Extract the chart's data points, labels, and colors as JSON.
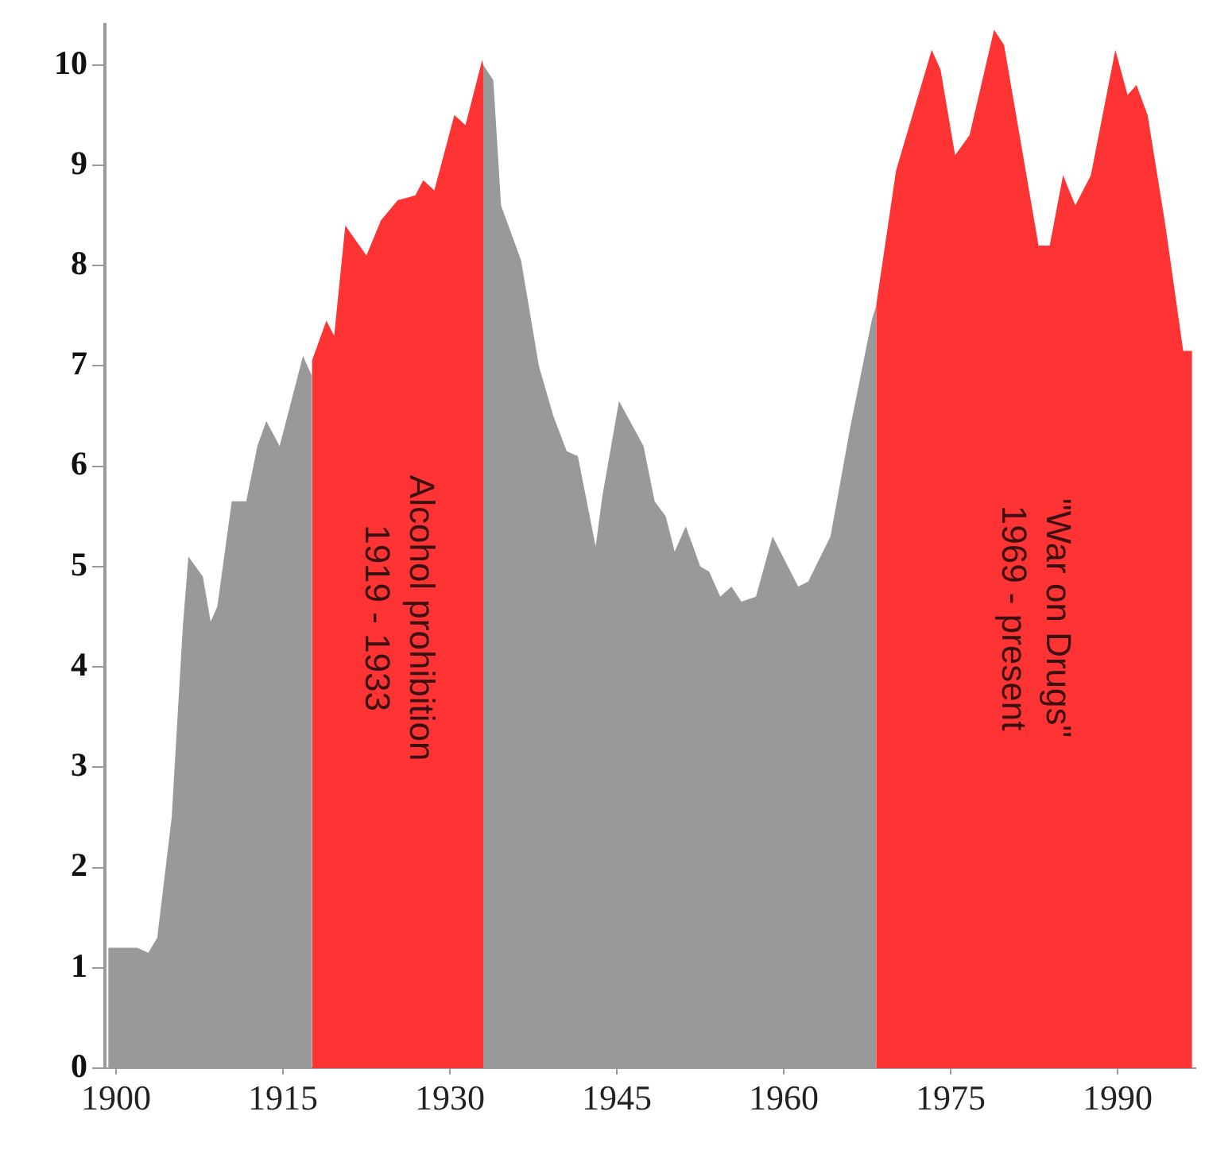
{
  "chart_data": {
    "type": "area",
    "xlim": [
      1899,
      1997
    ],
    "xticks": [
      1900,
      1915,
      1930,
      1945,
      1960,
      1975,
      1990
    ],
    "ylim": [
      0,
      10.4
    ],
    "yticks": [
      0,
      1,
      2,
      3,
      4,
      5,
      6,
      7,
      8,
      9,
      10
    ],
    "grid": false,
    "legend": false,
    "series": [
      {
        "color": "#999999",
        "x": [
          1899.3,
          1901.9,
          1902.9,
          1903.7,
          1905,
          1906,
          1906.5,
          1907.8,
          1908.5,
          1909.1,
          1910.4,
          1911.7,
          1912.7,
          1913.5,
          1914.7,
          1916.8,
          1917.6
        ],
        "values": [
          1.2,
          1.2,
          1.15,
          1.3,
          2.5,
          4.4,
          5.1,
          4.9,
          4.45,
          4.6,
          5.65,
          5.65,
          6.2,
          6.45,
          6.2,
          7.1,
          6.9
        ]
      },
      {
        "color": "#fe3333",
        "x": [
          1917.6,
          1918.9,
          1919.6,
          1920.6,
          1922.5,
          1923.8,
          1925.3,
          1926.9,
          1927.6,
          1928.6,
          1930.4,
          1931.4,
          1932.9,
          1933
        ],
        "values": [
          7.05,
          7.45,
          7.3,
          8.4,
          8.1,
          8.45,
          8.65,
          8.7,
          8.85,
          8.75,
          9.5,
          9.4,
          10.05,
          10
        ]
      },
      {
        "color": "#999999",
        "x": [
          1933,
          1933.9,
          1934.6,
          1936.4,
          1938,
          1939.3,
          1940.5,
          1941.5,
          1943.1,
          1943.7,
          1945.2,
          1947.4,
          1948.4,
          1949.4,
          1950.2,
          1951.2,
          1952.5,
          1953.3,
          1954.3,
          1955.3,
          1956.2,
          1957.5,
          1959,
          1961.3,
          1962.2,
          1964.2,
          1966,
          1967.9,
          1968.3
        ],
        "values": [
          10,
          9.85,
          8.6,
          8.05,
          7,
          6.5,
          6.15,
          6.1,
          5.2,
          5.7,
          6.65,
          6.2,
          5.65,
          5.5,
          5.15,
          5.4,
          5,
          4.95,
          4.7,
          4.8,
          4.65,
          4.7,
          5.3,
          4.8,
          4.85,
          5.3,
          6.4,
          7.45,
          7.6
        ]
      },
      {
        "color": "#fe3333",
        "x": [
          1968.3,
          1970.1,
          1973.3,
          1974.1,
          1975.4,
          1976.7,
          1978.9,
          1979.8,
          1982.9,
          1983.9,
          1985.1,
          1986.2,
          1987.6,
          1989.8,
          1990.9,
          1991.7,
          1992.7,
          1994.3,
          1995.9,
          1996.7
        ],
        "values": [
          7.6,
          8.95,
          10.15,
          9.95,
          9.1,
          9.3,
          10.35,
          10.2,
          8.2,
          8.2,
          8.9,
          8.6,
          8.9,
          10.15,
          9.7,
          9.8,
          9.5,
          8.4,
          7.15,
          7.15
        ]
      }
    ],
    "annotations": [
      "Alcohol prohibition",
      "1919 - 1933",
      "\"War on Drugs\"",
      "1969 - present"
    ]
  }
}
